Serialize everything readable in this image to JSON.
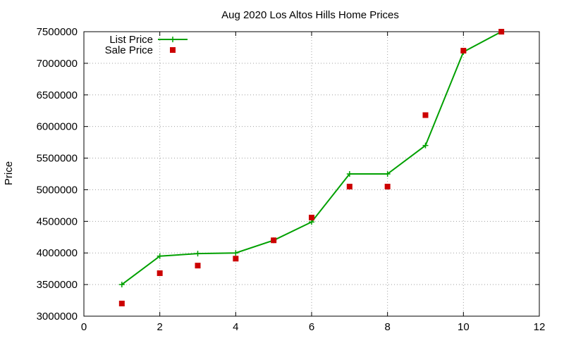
{
  "chart_data": {
    "type": "line",
    "title": "Aug 2020 Los Altos Hills Home Prices",
    "xlabel": "",
    "ylabel": "Price",
    "xlim": [
      0,
      12
    ],
    "ylim": [
      3000000,
      7500000
    ],
    "x_ticks": [
      0,
      2,
      4,
      6,
      8,
      10,
      12
    ],
    "y_ticks": [
      3000000,
      3500000,
      4000000,
      4500000,
      5000000,
      5500000,
      6000000,
      6500000,
      7000000,
      7500000
    ],
    "grid": true,
    "legend_position": "top-left",
    "series": [
      {
        "name": "List Price",
        "style": "line with plus markers",
        "color": "#00a000",
        "x": [
          1,
          2,
          3,
          4,
          5,
          6,
          7,
          8,
          9,
          10,
          11
        ],
        "values": [
          3500000,
          3950000,
          3990000,
          4000000,
          4200000,
          4490000,
          5250000,
          5250000,
          5700000,
          7180000,
          7500000
        ]
      },
      {
        "name": "Sale Price",
        "style": "square markers",
        "color": "#cc0000",
        "x": [
          1,
          2,
          3,
          4,
          5,
          6,
          7,
          8,
          9,
          10,
          11
        ],
        "values": [
          3200000,
          3680000,
          3800000,
          3910000,
          4200000,
          4560000,
          5050000,
          5050000,
          6180000,
          7200000,
          7500000
        ]
      }
    ]
  }
}
